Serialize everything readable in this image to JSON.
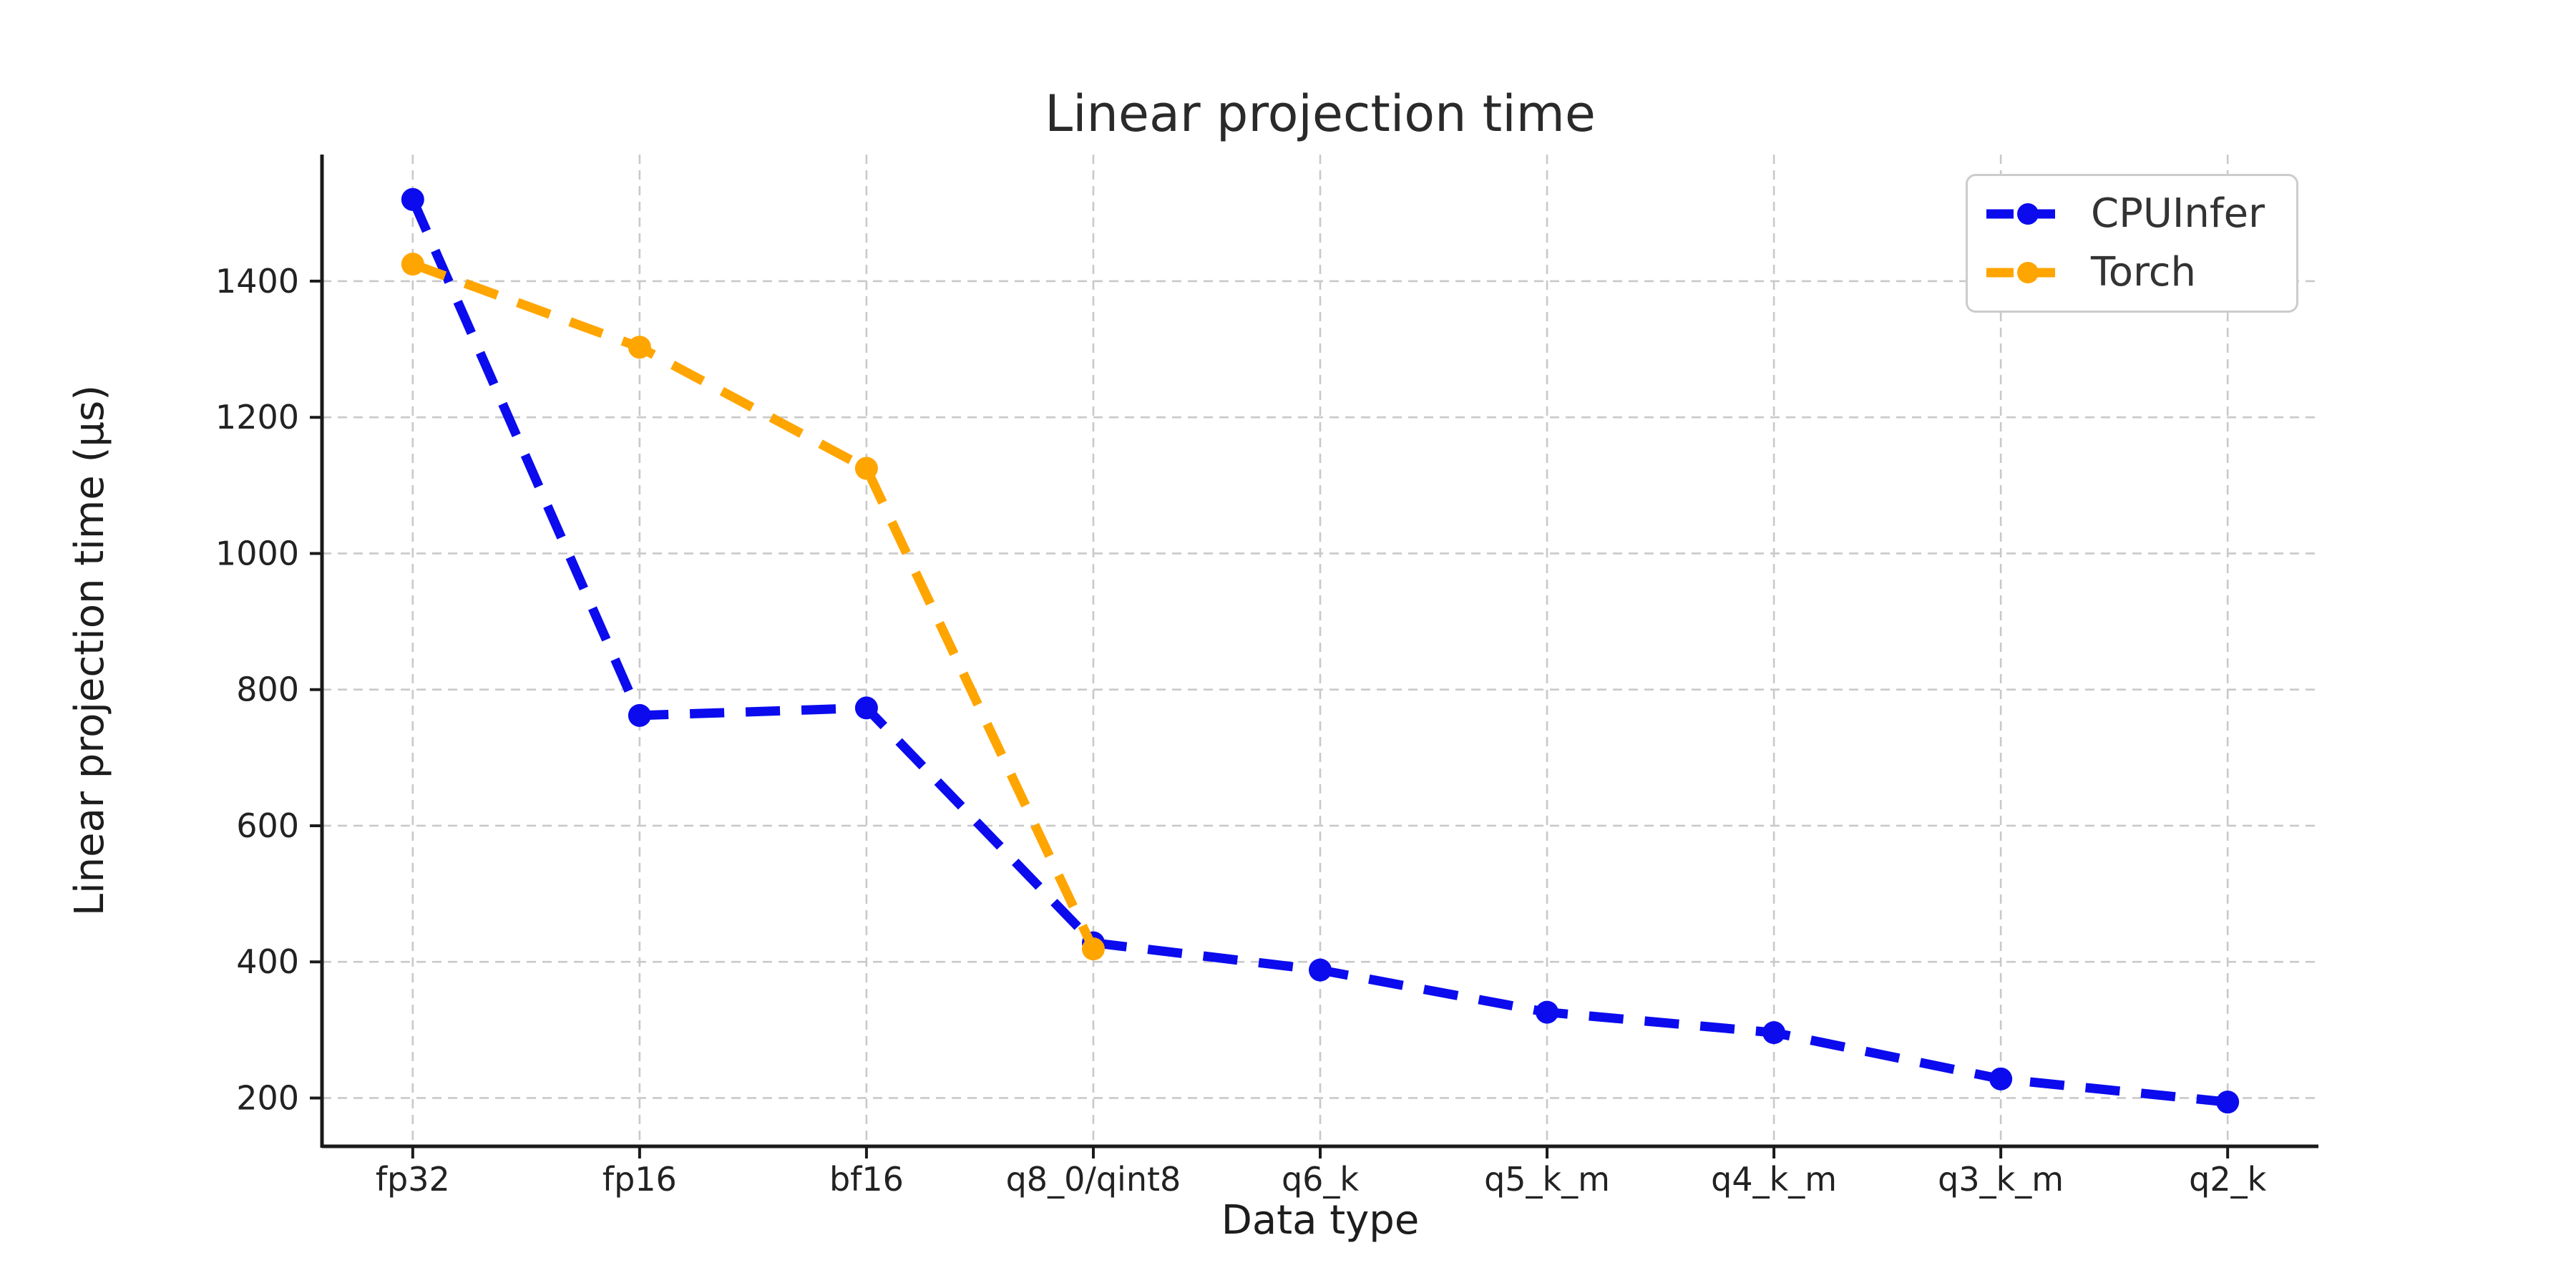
{
  "figure": {
    "title": "Linear projection time",
    "xlabel": "Data type",
    "ylabel": "Linear projection time (μs)"
  },
  "legend": {
    "items": [
      {
        "label": "CPUInfer",
        "color": "#0b0bee"
      },
      {
        "label": "Torch",
        "color": "#ffa500"
      }
    ]
  },
  "chart_data": {
    "type": "line",
    "title": "Linear projection time",
    "xlabel": "Data type",
    "ylabel": "Linear projection time (μs)",
    "categories": [
      "fp32",
      "fp16",
      "bf16",
      "q8_0/qint8",
      "q6_k",
      "q5_k_m",
      "q4_k_m",
      "q3_k_m",
      "q2_k"
    ],
    "series": [
      {
        "name": "CPUInfer",
        "color": "#0b0bee",
        "linestyle": "dashed",
        "marker": "circle",
        "values": [
          1520,
          762,
          773,
          428,
          388,
          326,
          296,
          228,
          194
        ]
      },
      {
        "name": "Torch",
        "color": "#ffa500",
        "linestyle": "dashed",
        "marker": "circle",
        "values": [
          1425,
          1303,
          1125,
          419,
          null,
          null,
          null,
          null,
          null
        ]
      }
    ],
    "yticks": [
      200,
      400,
      600,
      800,
      1000,
      1200,
      1400
    ],
    "ylim": [
      129,
      1586
    ],
    "grid": true,
    "grid_style": "dashed",
    "legend_position": "upper right",
    "grid_color": "#c9c9c9",
    "background": "#ffffff"
  }
}
